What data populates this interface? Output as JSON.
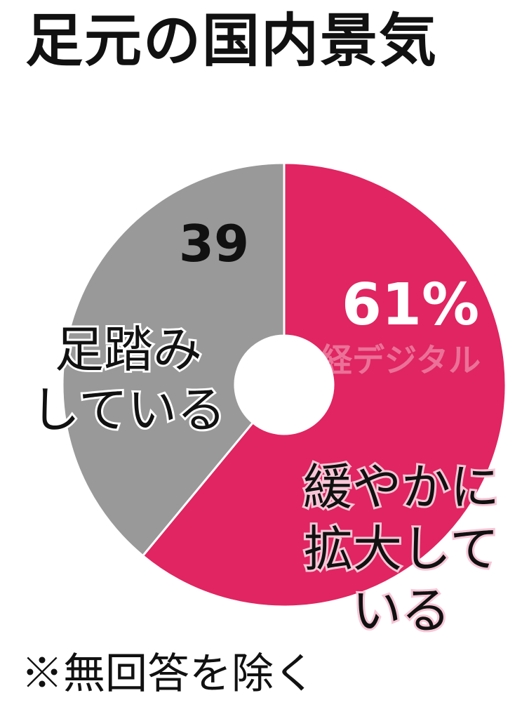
{
  "title": "足元の国内景気",
  "footnote": "※無回答を除く",
  "watermark": "日経デジタル",
  "chart_data": {
    "type": "pie",
    "title": "足元の国内景気",
    "slices": [
      {
        "label": "緩やかに拡大している",
        "label_lines": [
          "緩やかに",
          "拡大して",
          "いる"
        ],
        "value": 61,
        "value_label": "61%",
        "color": "#e02562"
      },
      {
        "label": "足踏みしている",
        "label_lines": [
          "足踏み",
          "している"
        ],
        "value": 39,
        "value_label": "39",
        "color": "#999999"
      }
    ],
    "note": "※無回答を除く"
  }
}
